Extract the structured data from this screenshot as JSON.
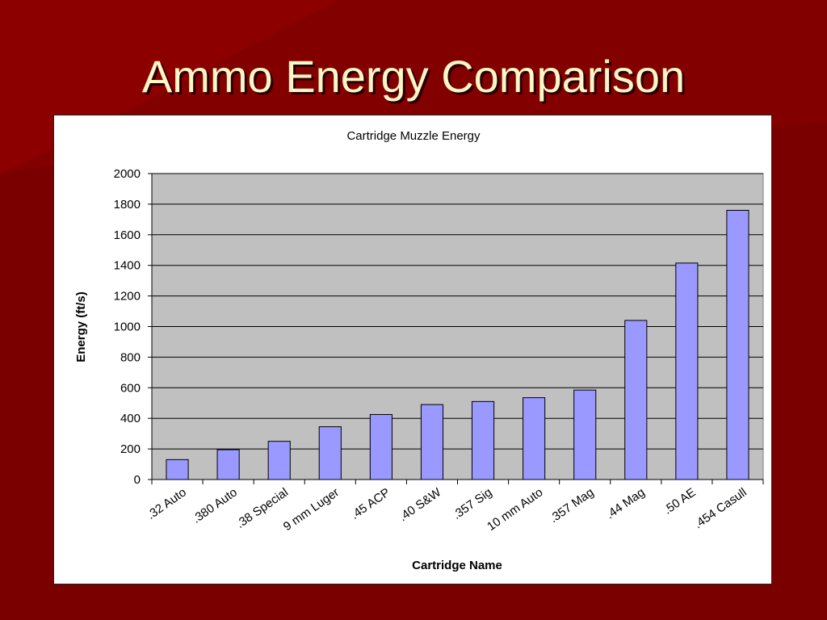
{
  "slide": {
    "title": "Ammo Energy Comparison",
    "background_color": "#7a0000",
    "title_color": "#fff7c8"
  },
  "chart_data": {
    "type": "bar",
    "title": "Cartridge Muzzle Energy",
    "xlabel": "Cartridge Name",
    "ylabel": "Energy (ft/s)",
    "categories": [
      ".32 Auto",
      ".380 Auto",
      ".38 Special",
      "9 mm Luger",
      ".45 ACP",
      ".40 S&W",
      ".357 Sig",
      "10 mm Auto",
      ".357 Mag",
      ".44 Mag",
      ".50 AE",
      ".454 Casull"
    ],
    "values": [
      130,
      195,
      250,
      345,
      425,
      490,
      510,
      535,
      585,
      1040,
      1415,
      1760
    ],
    "ylim": [
      0,
      2000
    ],
    "yticks": [
      "0",
      "200",
      "400",
      "600",
      "800",
      "1000",
      "1200",
      "1400",
      "1600",
      "1800",
      "2000"
    ],
    "grid": true,
    "legend": "none",
    "bar_color": "#9999ff",
    "plot_background": "#c0c0c0"
  }
}
